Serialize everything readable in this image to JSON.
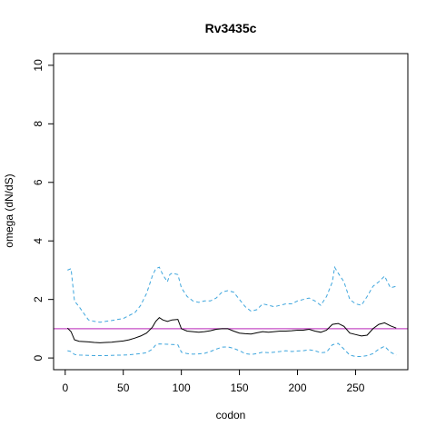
{
  "chart_data": {
    "type": "line",
    "title": "Rv3435c",
    "xlabel": "codon",
    "ylabel": "omega (dN/dS)",
    "xlim": [
      -10,
      295
    ],
    "ylim": [
      -0.4,
      10.4
    ],
    "xticks": [
      0,
      50,
      100,
      150,
      200,
      250
    ],
    "yticks": [
      0,
      2,
      4,
      6,
      8,
      10
    ],
    "reference_line": {
      "y": 1,
      "color": "#c54ec5"
    },
    "grid": false,
    "series": [
      {
        "role": "estimate",
        "color": "#000000",
        "style": "solid",
        "x": [
          2,
          5,
          8,
          12,
          20,
          25,
          30,
          35,
          40,
          50,
          55,
          60,
          65,
          70,
          75,
          78,
          81,
          84,
          88,
          92,
          97,
          100,
          105,
          110,
          115,
          120,
          125,
          130,
          135,
          140,
          145,
          150,
          155,
          160,
          165,
          170,
          175,
          180,
          185,
          190,
          195,
          200,
          205,
          210,
          215,
          220,
          225,
          230,
          235,
          240,
          245,
          250,
          255,
          260,
          265,
          270,
          275,
          280,
          285
        ],
        "values": [
          1.02,
          0.9,
          0.62,
          0.57,
          0.55,
          0.53,
          0.52,
          0.53,
          0.54,
          0.58,
          0.62,
          0.68,
          0.75,
          0.85,
          1.05,
          1.25,
          1.38,
          1.3,
          1.25,
          1.3,
          1.32,
          1.0,
          0.92,
          0.9,
          0.88,
          0.9,
          0.93,
          0.98,
          1.0,
          1.0,
          0.92,
          0.85,
          0.83,
          0.82,
          0.86,
          0.9,
          0.88,
          0.9,
          0.92,
          0.92,
          0.93,
          0.95,
          0.95,
          0.98,
          0.92,
          0.88,
          0.95,
          1.15,
          1.18,
          1.08,
          0.85,
          0.8,
          0.75,
          0.78,
          1.0,
          1.15,
          1.2,
          1.1,
          1.02
        ]
      },
      {
        "role": "upper bound",
        "color": "#3fa6dd",
        "style": "dashed",
        "x": [
          2,
          5,
          8,
          12,
          20,
          25,
          30,
          35,
          40,
          50,
          55,
          60,
          65,
          70,
          75,
          78,
          81,
          84,
          88,
          90,
          92,
          97,
          100,
          105,
          110,
          115,
          120,
          125,
          130,
          135,
          140,
          145,
          150,
          155,
          160,
          165,
          170,
          175,
          180,
          185,
          190,
          195,
          200,
          205,
          210,
          215,
          220,
          225,
          230,
          232,
          235,
          240,
          245,
          250,
          255,
          260,
          265,
          270,
          275,
          280,
          285
        ],
        "values": [
          3.0,
          3.05,
          1.95,
          1.75,
          1.3,
          1.25,
          1.22,
          1.25,
          1.28,
          1.35,
          1.45,
          1.55,
          1.8,
          2.2,
          2.8,
          3.05,
          3.1,
          2.85,
          2.6,
          2.85,
          2.9,
          2.85,
          2.4,
          2.1,
          1.95,
          1.9,
          1.95,
          1.95,
          2.05,
          2.25,
          2.3,
          2.25,
          2.0,
          1.75,
          1.6,
          1.65,
          1.85,
          1.8,
          1.75,
          1.8,
          1.85,
          1.85,
          1.95,
          2.0,
          2.05,
          1.95,
          1.8,
          2.1,
          2.6,
          3.1,
          2.9,
          2.6,
          2.0,
          1.85,
          1.8,
          2.1,
          2.45,
          2.6,
          2.8,
          2.4,
          2.45
        ]
      },
      {
        "role": "lower bound",
        "color": "#3fa6dd",
        "style": "dashed",
        "x": [
          2,
          5,
          8,
          12,
          20,
          25,
          30,
          35,
          40,
          50,
          55,
          60,
          65,
          70,
          75,
          78,
          81,
          88,
          92,
          97,
          100,
          105,
          110,
          115,
          120,
          125,
          130,
          135,
          140,
          145,
          150,
          155,
          160,
          165,
          170,
          175,
          180,
          185,
          190,
          195,
          200,
          205,
          210,
          215,
          220,
          225,
          230,
          235,
          240,
          245,
          250,
          255,
          260,
          265,
          270,
          275,
          280,
          285
        ],
        "values": [
          0.25,
          0.22,
          0.12,
          0.1,
          0.09,
          0.08,
          0.08,
          0.08,
          0.09,
          0.1,
          0.11,
          0.13,
          0.15,
          0.18,
          0.3,
          0.45,
          0.48,
          0.47,
          0.46,
          0.45,
          0.2,
          0.15,
          0.13,
          0.14,
          0.16,
          0.22,
          0.3,
          0.37,
          0.38,
          0.33,
          0.25,
          0.15,
          0.12,
          0.15,
          0.2,
          0.18,
          0.2,
          0.22,
          0.25,
          0.22,
          0.24,
          0.25,
          0.28,
          0.25,
          0.18,
          0.2,
          0.45,
          0.5,
          0.3,
          0.1,
          0.05,
          0.05,
          0.08,
          0.15,
          0.3,
          0.4,
          0.2,
          0.1
        ]
      }
    ]
  }
}
